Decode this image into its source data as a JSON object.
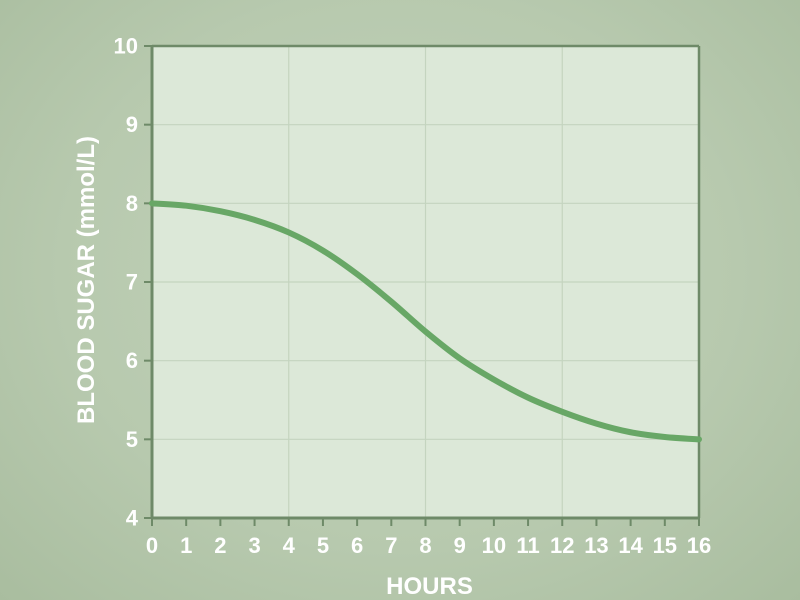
{
  "chart_data": {
    "type": "line",
    "title": "",
    "xlabel": "HOURS",
    "ylabel": "BLOOD SUGAR (mmol/L)",
    "xlim": [
      0,
      16
    ],
    "ylim": [
      4,
      10
    ],
    "x_ticks": [
      "0",
      "1",
      "2",
      "3",
      "4",
      "5",
      "6",
      "7",
      "8",
      "9",
      "10",
      "11",
      "12",
      "13",
      "14",
      "15",
      "16"
    ],
    "y_ticks": [
      "4",
      "5",
      "6",
      "7",
      "8",
      "9",
      "10"
    ],
    "grid": true,
    "legend": "none",
    "series": [
      {
        "color": "#68a766",
        "x": [
          0,
          1,
          2,
          3,
          4,
          5,
          6,
          7,
          8,
          9,
          10,
          11,
          12,
          13,
          14,
          15,
          16
        ],
        "y": [
          8.0,
          7.97,
          7.9,
          7.79,
          7.63,
          7.4,
          7.1,
          6.75,
          6.37,
          6.03,
          5.76,
          5.53,
          5.35,
          5.2,
          5.09,
          5.03,
          5.0
        ]
      }
    ],
    "colors": {
      "plot_background": "#dce8d8",
      "axis": "#6e8a68",
      "grid": "#c4d4bf",
      "text": "#ffffff"
    }
  }
}
